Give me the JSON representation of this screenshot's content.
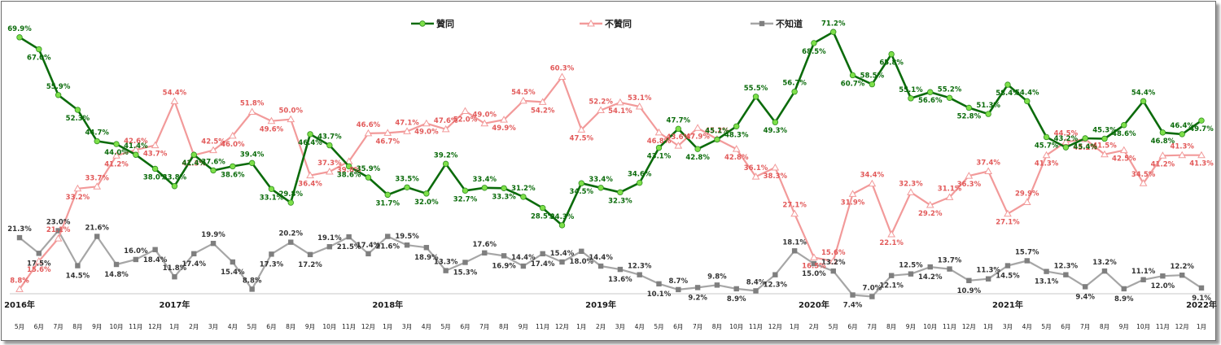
{
  "chart_data": {
    "type": "line",
    "legend_position": "top",
    "grid": false,
    "ylim": [
      0,
      75
    ],
    "years": [
      {
        "label": "2016年",
        "at": 0
      },
      {
        "label": "2017年",
        "at": 8
      },
      {
        "label": "2018年",
        "at": 19
      },
      {
        "label": "2019年",
        "at": 30
      },
      {
        "label": "2020年",
        "at": 41
      },
      {
        "label": "2021年",
        "at": 51
      },
      {
        "label": "2022年",
        "at": 61
      }
    ],
    "categories": [
      "5月",
      "6月",
      "7月",
      "8月",
      "9月",
      "10月",
      "11月",
      "12月",
      "1月",
      "2月",
      "3月",
      "4月",
      "5月",
      "6月",
      "8月",
      "9月",
      "10月",
      "11月",
      "12月",
      "1月",
      "3月",
      "4月",
      "5月",
      "6月",
      "7月",
      "8月",
      "9月",
      "11月",
      "12月",
      "1月",
      "2月",
      "3月",
      "4月",
      "5月",
      "6月",
      "7月",
      "8月",
      "10月",
      "11月",
      "12月",
      "1月",
      "2月",
      "5月",
      "6月",
      "7月",
      "8月",
      "9月",
      "10月",
      "11月",
      "12月",
      "1月",
      "3月",
      "4月",
      "5月",
      "6月",
      "7月",
      "8月",
      "9月",
      "10月",
      "11月",
      "12月",
      "1月"
    ],
    "series": [
      {
        "name": "贊同",
        "color": "#0b6b0b",
        "marker": "circle",
        "marker_fill": "#7ee04a",
        "label_color": "#0b6b0b",
        "values": [
          69.9,
          67.0,
          55.9,
          52.3,
          44.7,
          44.0,
          41.4,
          38.0,
          33.8,
          41.4,
          37.6,
          38.6,
          39.4,
          33.1,
          29.8,
          46.4,
          43.7,
          38.6,
          35.9,
          31.7,
          33.5,
          32.0,
          39.2,
          32.7,
          33.4,
          33.3,
          31.2,
          28.5,
          24.3,
          34.5,
          33.4,
          32.3,
          34.6,
          43.1,
          47.7,
          42.8,
          45.1,
          48.3,
          55.5,
          49.3,
          56.7,
          68.5,
          71.2,
          60.7,
          58.5,
          65.8,
          55.1,
          56.6,
          55.2,
          52.8,
          51.3,
          58.4,
          54.4,
          45.7,
          43.2,
          45.4,
          45.3,
          48.6,
          54.4,
          46.8,
          46.4,
          49.7
        ],
        "labels": [
          "69.9%",
          "67.0%",
          "55.9%",
          "52.3%",
          "44.7%",
          "44.0%",
          "41.4%",
          "38.0%",
          "33.8%",
          "41.4%",
          "37.6%",
          "38.6%",
          "39.4%",
          "33.1%",
          "29.8%",
          "46.4%",
          "43.7%",
          "38.6%",
          "35.9%",
          "31.7%",
          "33.5%",
          "32.0%",
          "39.2%",
          "32.7%",
          "33.4%",
          "33.3%",
          "31.2%",
          "28.5%",
          "24.3%",
          "34.5%",
          "33.4%",
          "32.3%",
          "34.6%",
          "43.1%",
          "47.7%",
          "42.8%",
          "45.1%",
          "48.3%",
          "55.5%",
          "49.3%",
          "56.7%",
          "68.5%",
          "71.2%",
          "60.7%",
          "58.5%",
          "65.8%",
          "55.1%",
          "56.6%",
          "55.2%",
          "52.8%",
          "51.3%",
          "58.4%",
          "54.4%",
          "45.7%",
          "43.2%",
          "45.4%",
          "45.3%",
          "48.6%",
          "54.4%",
          "46.8%",
          "46.4%",
          "49.7%"
        ]
      },
      {
        "name": "不贊同",
        "color": "#f29a9a",
        "marker": "triangle",
        "marker_fill": "#ffffff",
        "label_color": "#e25a5a",
        "values": [
          8.8,
          15.6,
          21.1,
          33.2,
          33.7,
          41.2,
          42.6,
          43.7,
          54.4,
          41.3,
          42.5,
          46.0,
          51.8,
          49.6,
          50.0,
          36.4,
          37.3,
          39.8,
          46.6,
          46.7,
          47.1,
          49.0,
          47.6,
          52.0,
          49.0,
          49.9,
          54.5,
          54.2,
          60.3,
          47.5,
          52.2,
          54.1,
          53.1,
          46.8,
          43.6,
          47.9,
          45.2,
          42.8,
          36.1,
          38.3,
          27.1,
          16.5,
          15.6,
          31.9,
          34.4,
          22.1,
          32.3,
          29.2,
          31.1,
          36.3,
          37.4,
          27.1,
          29.9,
          41.3,
          44.5,
          45.2,
          41.5,
          42.5,
          34.5,
          41.2,
          41.3,
          41.3
        ],
        "labels": [
          "8.8%",
          "15.6%",
          "21.1%",
          "33.2%",
          "33.7%",
          "41.2%",
          "42.6%",
          "43.7%",
          "54.4%",
          "41.3%",
          "42.5%",
          "46.0%",
          "51.8%",
          "49.6%",
          "50.0%",
          "36.4%",
          "37.3%",
          "39.8%",
          "46.6%",
          "46.7%",
          "47.1%",
          "49.0%",
          "47.6%",
          "52.0%",
          "49.0%",
          "49.9%",
          "54.5%",
          "54.2%",
          "60.3%",
          "47.5%",
          "52.2%",
          "54.1%",
          "53.1%",
          "46.8%",
          "43.6%",
          "47.9%",
          "45.2%",
          "42.8%",
          "36.1%",
          "38.3%",
          "27.1%",
          "16.5%",
          "15.6%",
          "31.9%",
          "34.4%",
          "22.1%",
          "32.3%",
          "29.2%",
          "31.1%",
          "36.3%",
          "37.4%",
          "27.1%",
          "29.9%",
          "41.3%",
          "44.5%",
          "45.2%",
          "41.5%",
          "42.5%",
          "34.5%",
          "41.2%",
          "41.3%",
          "41.3%"
        ]
      },
      {
        "name": "不知道",
        "color": "#a6a6a6",
        "marker": "square",
        "marker_fill": "#7f7f7f",
        "label_color": "#333333",
        "values": [
          21.3,
          17.5,
          23.0,
          14.5,
          21.6,
          14.8,
          16.0,
          18.4,
          11.8,
          17.4,
          19.9,
          15.4,
          8.8,
          17.3,
          20.2,
          17.2,
          19.1,
          21.5,
          17.4,
          21.6,
          19.5,
          18.9,
          13.3,
          15.3,
          17.6,
          16.9,
          14.4,
          17.4,
          15.4,
          18.0,
          14.4,
          13.6,
          12.3,
          10.1,
          8.7,
          9.2,
          9.8,
          8.9,
          8.4,
          12.3,
          18.1,
          15.0,
          13.2,
          7.4,
          7.0,
          12.1,
          12.5,
          14.2,
          13.7,
          10.9,
          11.3,
          14.5,
          15.7,
          13.1,
          12.3,
          9.4,
          13.2,
          8.9,
          11.1,
          12.0,
          12.2,
          9.1
        ],
        "labels": [
          "21.3%",
          "17.5%",
          "23.0%",
          "14.5%",
          "21.6%",
          "14.8%",
          "16.0%",
          "18.4%",
          "11.8%",
          "17.4%",
          "19.9%",
          "15.4%",
          "8.8%",
          "17.3%",
          "20.2%",
          "17.2%",
          "19.1%",
          "21.5%",
          "17.4%",
          "21.6%",
          "19.5%",
          "18.9%",
          "13.3%",
          "15.3%",
          "17.6%",
          "16.9%",
          "14.4%",
          "17.4%",
          "15.4%",
          "18.0%",
          "14.4%",
          "13.6%",
          "12.3%",
          "10.1%",
          "8.7%",
          "9.2%",
          "9.8%",
          "8.9%",
          "8.4%",
          "12.3%",
          "18.1%",
          "15.0%",
          "13.2%",
          "7.4%",
          "7.0%",
          "12.1%",
          "12.5%",
          "14.2%",
          "13.7%",
          "10.9%",
          "11.3%",
          "14.5%",
          "15.7%",
          "13.1%",
          "12.3%",
          "9.4%",
          "13.2%",
          "8.9%",
          "11.1%",
          "12.0%",
          "12.2%",
          "9.1%"
        ]
      }
    ]
  }
}
